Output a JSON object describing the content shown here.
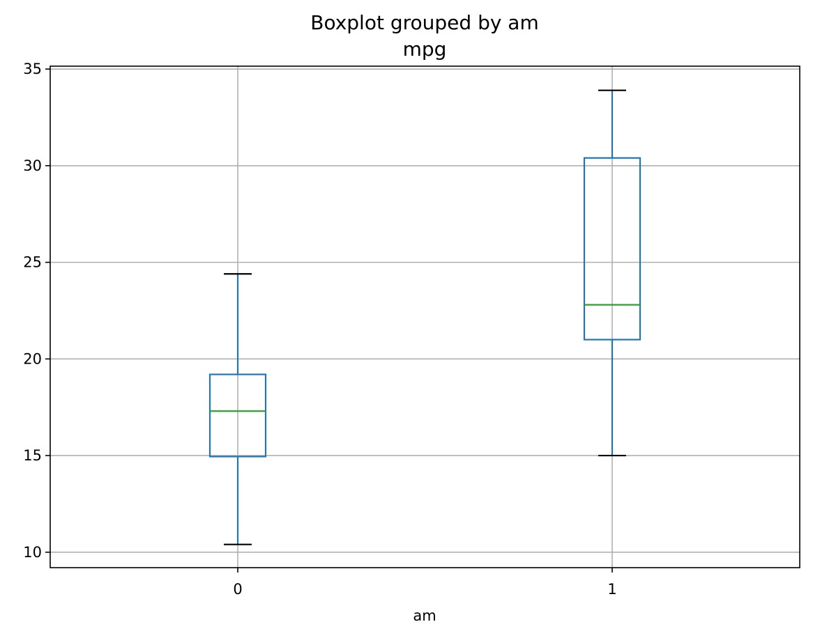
{
  "chart_data": {
    "type": "boxplot",
    "title": "Boxplot grouped by am",
    "subtitle": "mpg",
    "xlabel": "am",
    "ylabel": "",
    "ylim": [
      9.2,
      35.15
    ],
    "yticks": [
      10,
      15,
      20,
      25,
      30,
      35
    ],
    "grid": true,
    "categories": [
      "0",
      "1"
    ],
    "boxes": [
      {
        "category": "0",
        "whisker_low": 10.4,
        "q1": 14.95,
        "median": 17.3,
        "q3": 19.2,
        "whisker_high": 24.4
      },
      {
        "category": "1",
        "whisker_low": 15.0,
        "q1": 21.0,
        "median": 22.8,
        "q3": 30.4,
        "whisker_high": 33.9
      }
    ],
    "colors": {
      "box": "#1f77b4",
      "median": "#2ca02c",
      "cap": "#000000",
      "grid": "#b0b0b0"
    }
  }
}
